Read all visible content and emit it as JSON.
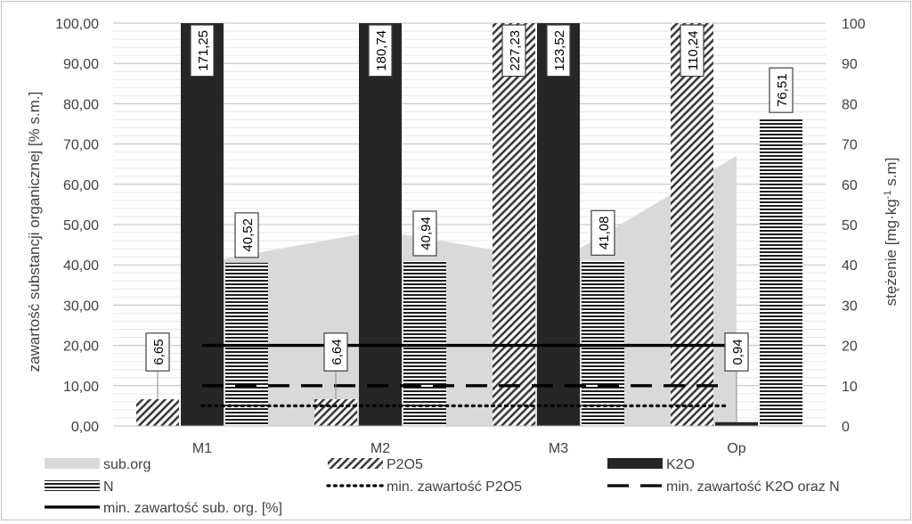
{
  "chart_data": {
    "type": "bar",
    "categories": [
      "M1",
      "M2",
      "M3",
      "Op"
    ],
    "y_left": {
      "label": "zawartość substancji organicznej [% s.m.]",
      "min": 0,
      "max": 100,
      "step": 10,
      "tick_labels": [
        "0,00",
        "10,00",
        "20,00",
        "30,00",
        "40,00",
        "50,00",
        "60,00",
        "70,00",
        "80,00",
        "90,00",
        "100,00"
      ]
    },
    "y_right": {
      "label_main": "stężenie [mg·kg",
      "label_sup": "-1",
      "label_tail": " s.m]",
      "min": 0,
      "max": 100,
      "step": 10,
      "tick_labels": [
        "0",
        "10",
        "20",
        "30",
        "40",
        "50",
        "60",
        "70",
        "80",
        "90",
        "100"
      ]
    },
    "area_series": {
      "name": "sub.org",
      "values": [
        40.5,
        48.5,
        41.0,
        67.0
      ],
      "color": "#d9d9d9"
    },
    "bar_series": [
      {
        "name": "P2O5",
        "pattern": "diagonal",
        "values": [
          6.65,
          6.64,
          227.23,
          110.24
        ],
        "labels": [
          "6,65",
          "6,64",
          "227,23",
          "110,24"
        ]
      },
      {
        "name": "K2O",
        "pattern": "solid",
        "color": "#262626",
        "values": [
          171.25,
          180.74,
          123.52,
          0.94
        ],
        "labels": [
          "171,25",
          "180,74",
          "123,52",
          "0,94"
        ]
      },
      {
        "name": "N",
        "pattern": "horizontal",
        "values": [
          40.52,
          40.94,
          41.08,
          76.51
        ],
        "labels": [
          "40,52",
          "40,94",
          "41,08",
          "76,51"
        ]
      }
    ],
    "reference_lines": [
      {
        "name": "min. zawartość sub. org. [%]",
        "value": 20,
        "style": "solid"
      },
      {
        "name": "min. zawartość K2O oraz N",
        "value": 10,
        "style": "dashed"
      },
      {
        "name": "min. zawartość P2O5",
        "value": 5,
        "style": "dotted"
      }
    ],
    "legend": {
      "position": "bottom",
      "items": [
        {
          "label": "sub.org",
          "kind": "area"
        },
        {
          "label": "P2O5",
          "kind": "diagonal"
        },
        {
          "label": "K2O",
          "kind": "solid"
        },
        {
          "label": "N",
          "kind": "horizontal"
        },
        {
          "label": "min. zawartość P2O5",
          "kind": "dotted"
        },
        {
          "label": "min. zawartość K2O oraz N",
          "kind": "dashed"
        },
        {
          "label": "min. zawartość sub. org. [%]",
          "kind": "line"
        }
      ]
    },
    "grid": true
  }
}
